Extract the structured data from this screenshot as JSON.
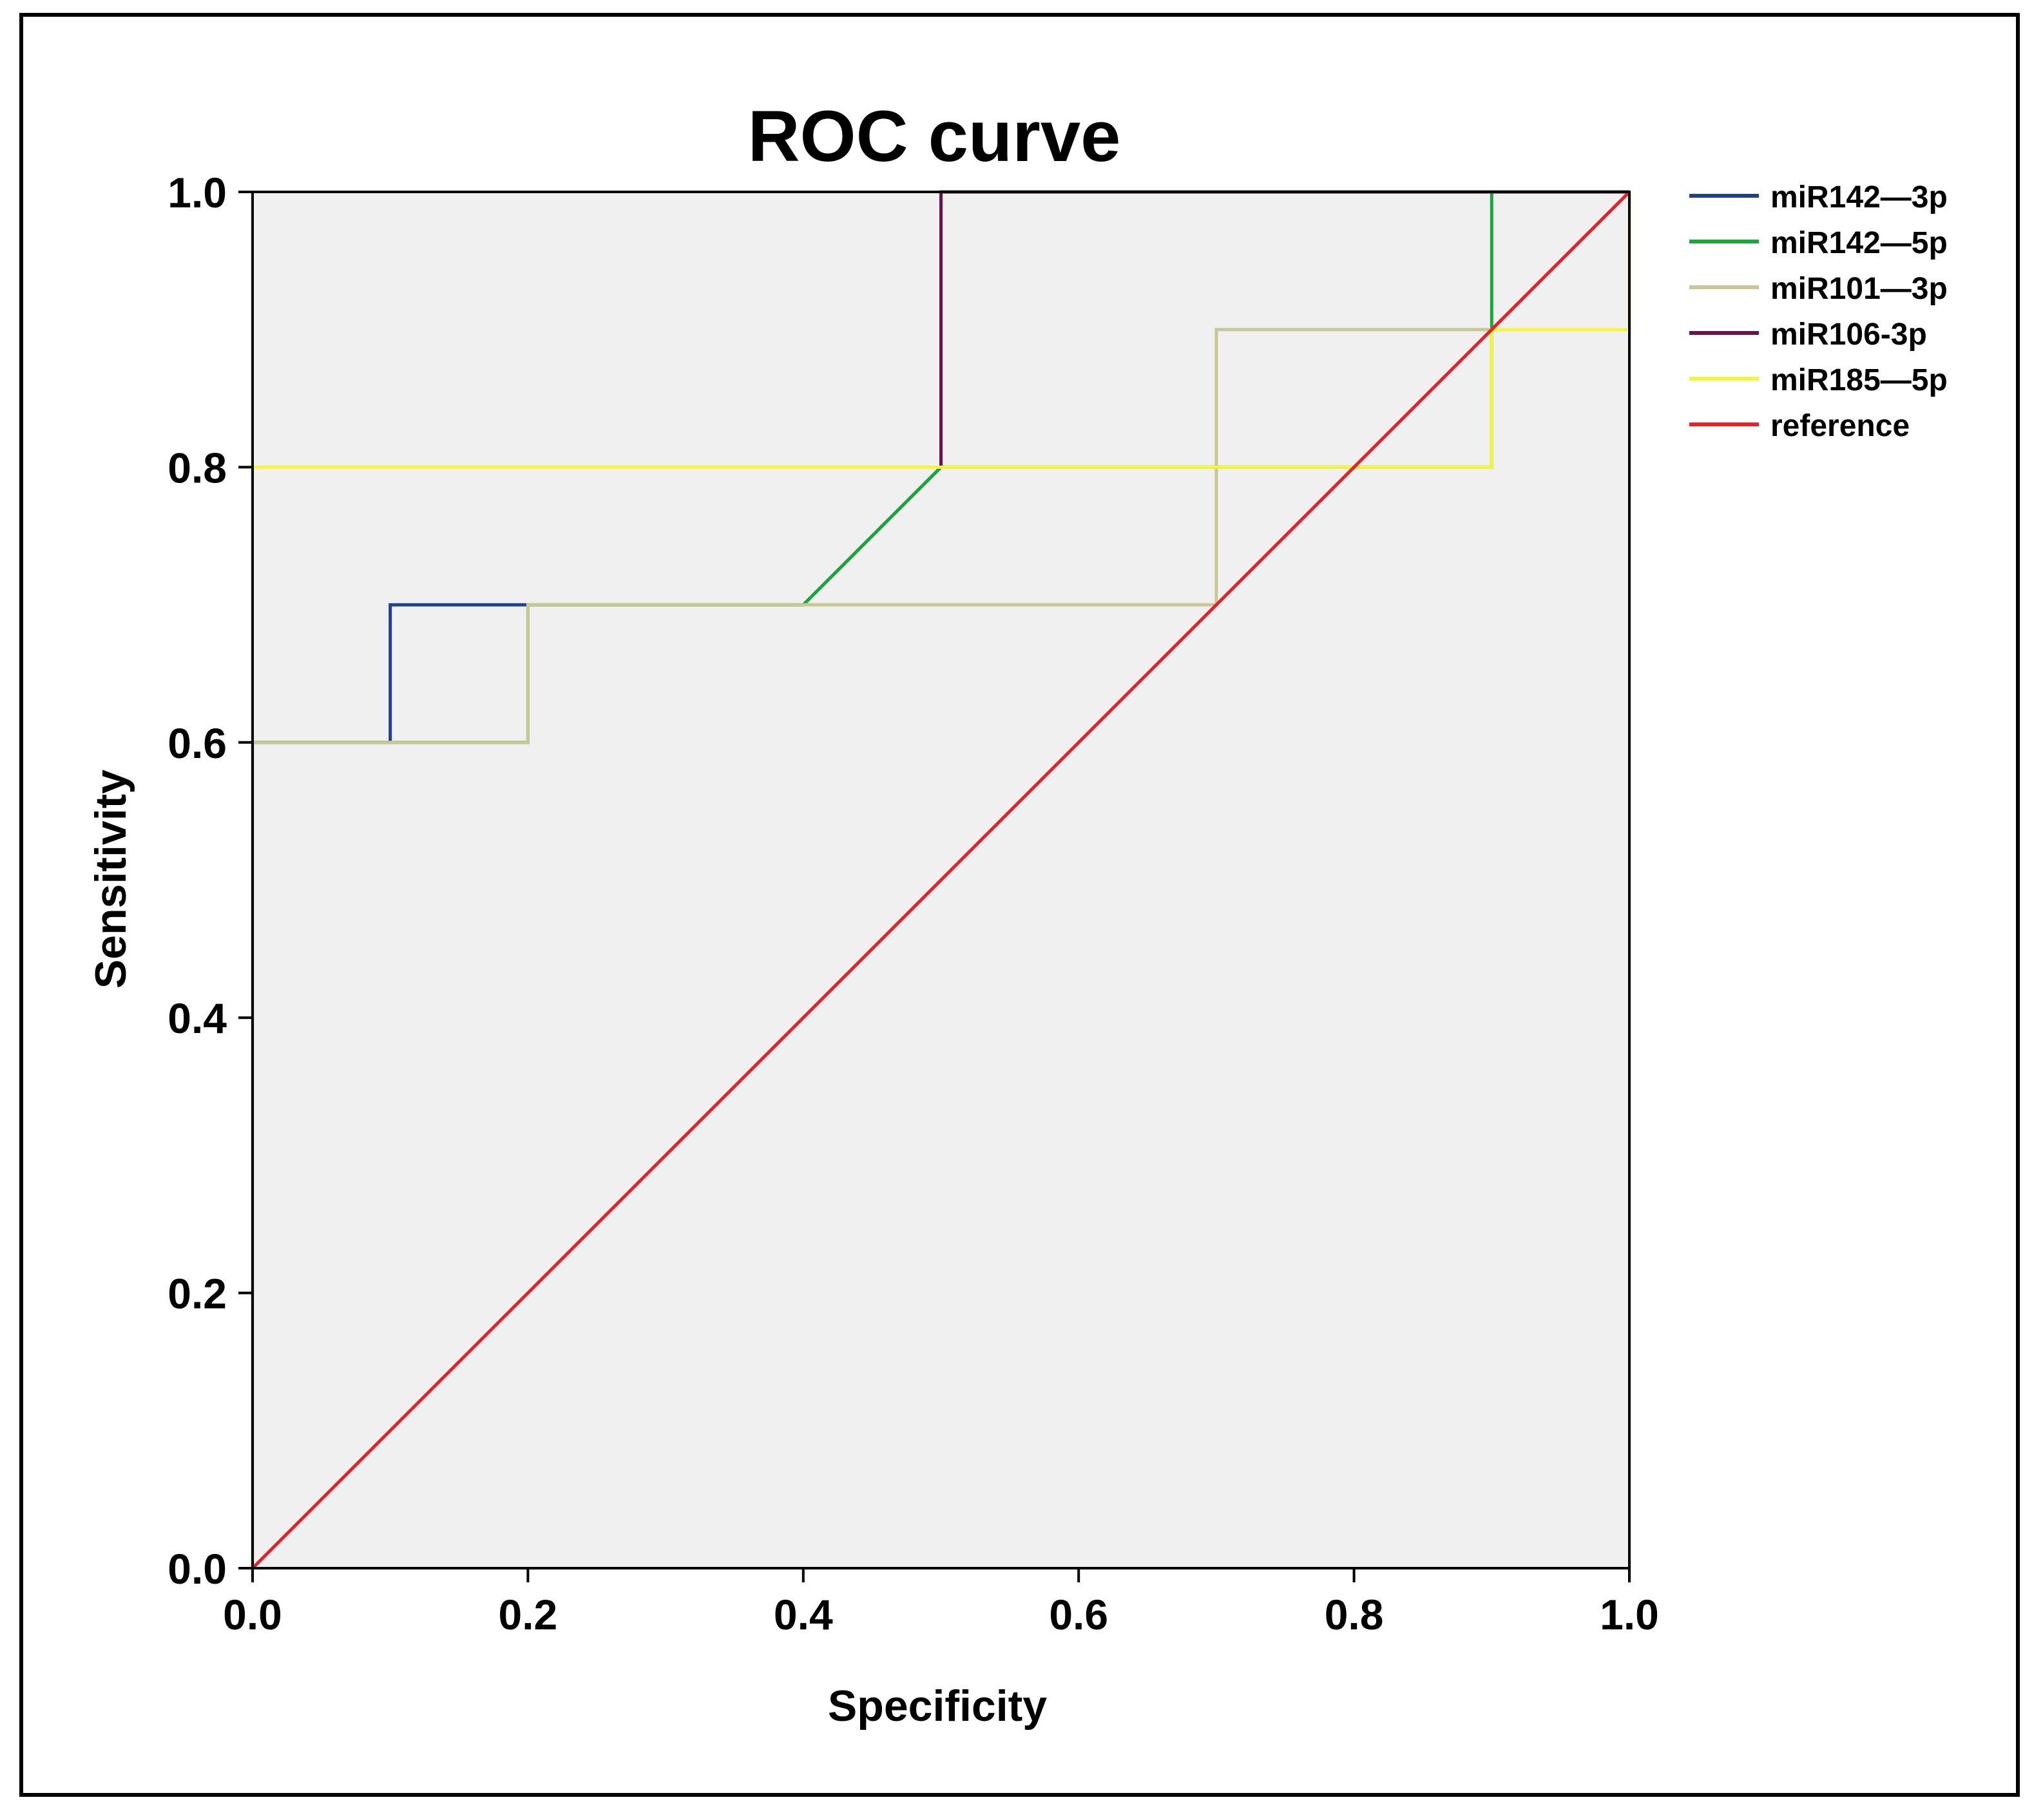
{
  "chart_data": {
    "type": "line",
    "title": "ROC curve",
    "xlabel": "Specificity",
    "ylabel": "Sensitivity",
    "xlim": [
      0,
      1
    ],
    "ylim": [
      0,
      1
    ],
    "x_ticks": [
      "0.0",
      "0.2",
      "0.4",
      "0.6",
      "0.8",
      "1.0"
    ],
    "y_ticks": [
      "0.0",
      "0.2",
      "0.4",
      "0.6",
      "0.8",
      "1.0"
    ],
    "grid": false,
    "legend_position": "right",
    "plot_background": "#f0f0f0",
    "series": [
      {
        "name": "miR142—3p",
        "color": "#1f3f8f",
        "points": [
          [
            0,
            0.6
          ],
          [
            0.1,
            0.6
          ],
          [
            0.1,
            0.7
          ],
          [
            0.2,
            0.7
          ],
          [
            0.4,
            0.7
          ],
          [
            0.5,
            0.8
          ],
          [
            0.5,
            1.0
          ],
          [
            0.9,
            1.0
          ],
          [
            1.0,
            1.0
          ]
        ]
      },
      {
        "name": "miR142—5p",
        "color": "#1aa63a",
        "points": [
          [
            0,
            0.6
          ],
          [
            0.2,
            0.6
          ],
          [
            0.2,
            0.7
          ],
          [
            0.4,
            0.7
          ],
          [
            0.5,
            0.8
          ],
          [
            0.9,
            0.8
          ],
          [
            0.9,
            0.9
          ],
          [
            0.9,
            1.0
          ],
          [
            1.0,
            1.0
          ]
        ]
      },
      {
        "name": "miR101—3p",
        "color": "#c8c896",
        "points": [
          [
            0,
            0
          ],
          [
            0,
            0.6
          ],
          [
            0.2,
            0.6
          ],
          [
            0.2,
            0.7
          ],
          [
            0.7,
            0.7
          ],
          [
            0.7,
            0.9
          ],
          [
            0.9,
            0.9
          ],
          [
            1.0,
            1.0
          ]
        ]
      },
      {
        "name": "miR106-3p",
        "color": "#6b1248",
        "points": [
          [
            0.5,
            0.8
          ],
          [
            0.5,
            1.0
          ],
          [
            1.0,
            1.0
          ]
        ]
      },
      {
        "name": "miR185—5p",
        "color": "#f5f53c",
        "points": [
          [
            0,
            0.8
          ],
          [
            0.9,
            0.8
          ],
          [
            0.9,
            0.9
          ],
          [
            1.0,
            0.9
          ],
          [
            1.0,
            1.0
          ]
        ]
      },
      {
        "name": "reference",
        "color": "#e8202a",
        "points": [
          [
            0,
            0
          ],
          [
            1,
            1
          ]
        ]
      }
    ]
  }
}
